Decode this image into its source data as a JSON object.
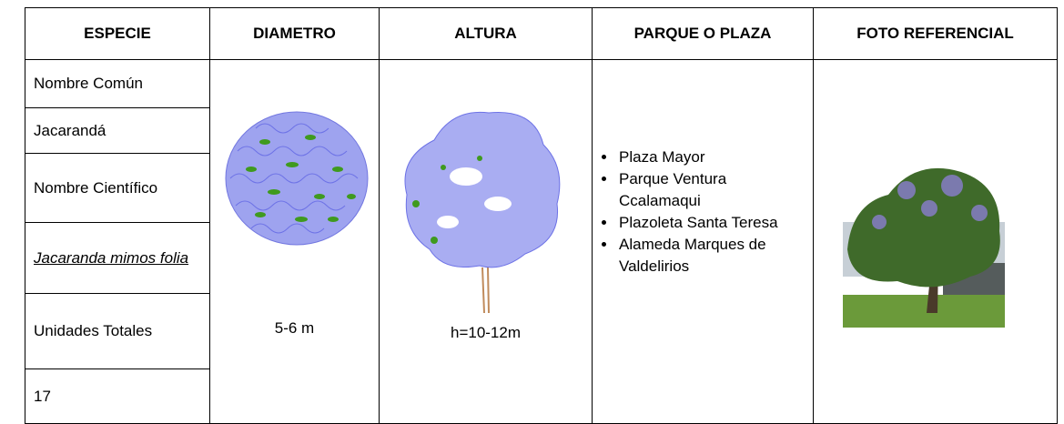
{
  "table": {
    "header": [
      "ESPECIE",
      "DIAMETRO",
      "ALTURA",
      "PARQUE O PLAZA",
      "FOTO REFERENCIAL"
    ],
    "especie": [
      "Nombre Común",
      "Jacarandá",
      "Nombre Científico",
      "Jacaranda mimos folia",
      "Unidades Totales",
      "17"
    ],
    "diametro": "5-6 m",
    "altura": "h=10-12m",
    "parques": [
      "Plaza Mayor",
      "Parque Ventura Ccalamaqui",
      "Plazoleta Santa Teresa",
      "Alameda Marques de Valdelirios"
    ]
  }
}
